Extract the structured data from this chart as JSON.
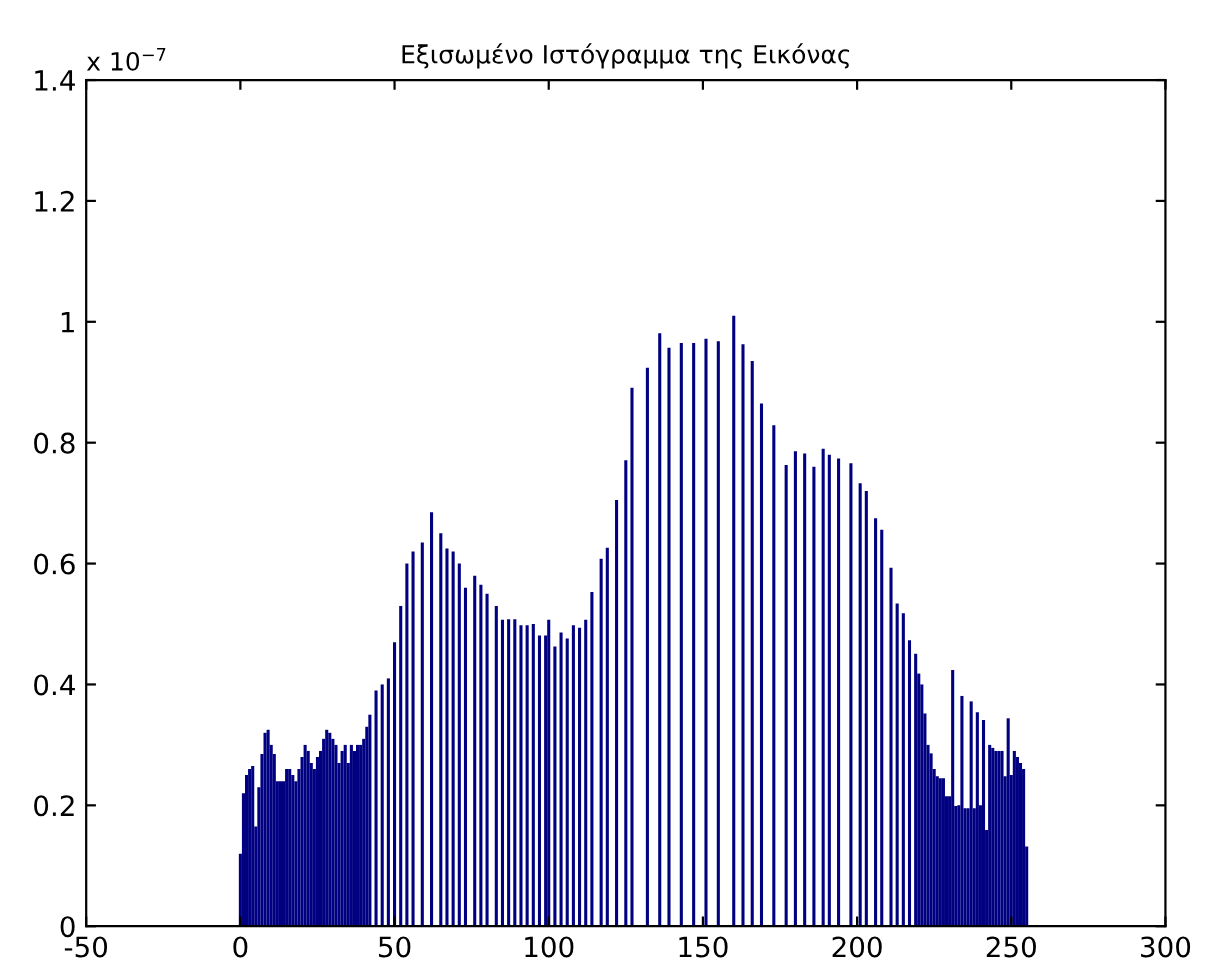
{
  "chart_data": {
    "type": "bar",
    "title": "Εξισωμένο Ιστόγραμμα της Εικόνας",
    "color": "#000080",
    "x": [
      0,
      1,
      2,
      3,
      4,
      5,
      6,
      7,
      8,
      9,
      10,
      11,
      12,
      13,
      14,
      15,
      16,
      17,
      18,
      19,
      20,
      21,
      22,
      23,
      24,
      25,
      26,
      27,
      28,
      29,
      30,
      31,
      32,
      33,
      34,
      35,
      36,
      37,
      38,
      39,
      40,
      41,
      42,
      44,
      46,
      48,
      50,
      52,
      54,
      56,
      59,
      62,
      65,
      67,
      69,
      71,
      73,
      76,
      78,
      80,
      83,
      85,
      87,
      89,
      91,
      93,
      95,
      97,
      99,
      100,
      102,
      104,
      106,
      108,
      110,
      112,
      114,
      117,
      119,
      122,
      125,
      127,
      132,
      136,
      139,
      143,
      147,
      151,
      155,
      160,
      163,
      166,
      169,
      173,
      177,
      180,
      183,
      186,
      189,
      191,
      194,
      198,
      201,
      203,
      206,
      208,
      211,
      213,
      215,
      217,
      219,
      220,
      221,
      222,
      223,
      224,
      225,
      226,
      227,
      228,
      229,
      230,
      231,
      232,
      233,
      234,
      235,
      236,
      237,
      238,
      239,
      240,
      241,
      242,
      243,
      244,
      245,
      246,
      247,
      248,
      249,
      250,
      251,
      252,
      253,
      254,
      255
    ],
    "values": [
      0.12,
      0.22,
      0.25,
      0.26,
      0.265,
      0.165,
      0.23,
      0.285,
      0.32,
      0.325,
      0.3,
      0.285,
      0.24,
      0.24,
      0.24,
      0.26,
      0.26,
      0.25,
      0.24,
      0.26,
      0.28,
      0.3,
      0.29,
      0.27,
      0.26,
      0.28,
      0.29,
      0.31,
      0.325,
      0.32,
      0.31,
      0.3,
      0.27,
      0.29,
      0.3,
      0.27,
      0.3,
      0.29,
      0.3,
      0.3,
      0.31,
      0.33,
      0.35,
      0.39,
      0.4,
      0.41,
      0.47,
      0.53,
      0.6,
      0.62,
      0.635,
      0.685,
      0.65,
      0.625,
      0.62,
      0.6,
      0.56,
      0.58,
      0.565,
      0.55,
      0.53,
      0.507,
      0.508,
      0.508,
      0.498,
      0.498,
      0.5,
      0.481,
      0.481,
      0.507,
      0.463,
      0.486,
      0.476,
      0.498,
      0.494,
      0.507,
      0.553,
      0.608,
      0.626,
      0.705,
      0.771,
      0.891,
      0.924,
      0.981,
      0.957,
      0.965,
      0.965,
      0.972,
      0.968,
      1.01,
      0.963,
      0.935,
      0.865,
      0.829,
      0.763,
      0.786,
      0.782,
      0.76,
      0.79,
      0.78,
      0.774,
      0.766,
      0.733,
      0.72,
      0.675,
      0.656,
      0.593,
      0.534,
      0.518,
      0.473,
      0.451,
      0.418,
      0.4,
      0.352,
      0.3,
      0.286,
      0.26,
      0.248,
      0.245,
      0.245,
      0.215,
      0.215,
      0.424,
      0.199,
      0.2,
      0.381,
      0.195,
      0.195,
      0.372,
      0.195,
      0.354,
      0.2,
      0.341,
      0.159,
      0.3,
      0.295,
      0.29,
      0.29,
      0.29,
      0.248,
      0.344,
      0.25,
      0.29,
      0.28,
      0.27,
      0.26,
      0.132
    ],
    "xlim": [
      -50,
      300
    ],
    "xticks": [
      -50,
      0,
      50,
      100,
      150,
      200,
      250,
      300
    ],
    "ylim": [
      0,
      1.4
    ],
    "yticks": [
      0,
      0.2,
      0.4,
      0.6,
      0.8,
      1,
      1.2,
      1.4
    ],
    "annotations": [
      "x 10$^{−7}$"
    ],
    "grid": false,
    "legend": false
  }
}
